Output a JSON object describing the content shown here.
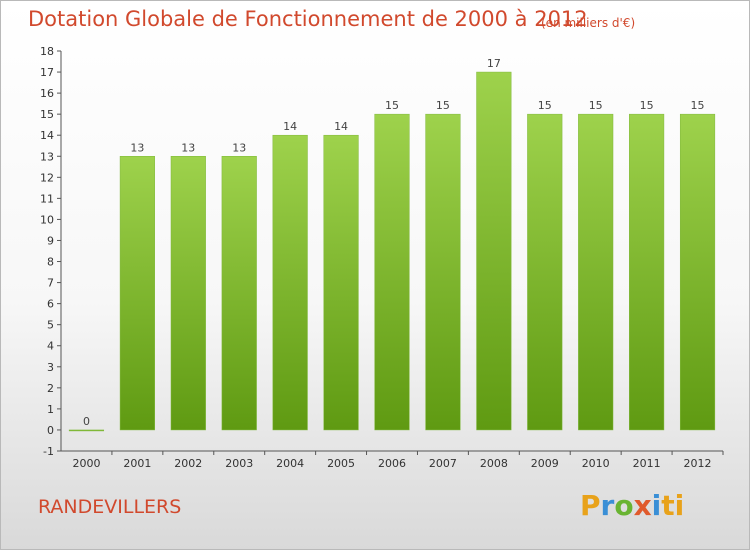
{
  "header": {
    "title": "Dotation Globale de Fonctionnement de 2000 à 2012",
    "unit_note": "(en milliers d'€)"
  },
  "footer": {
    "town": "RANDEVILLERS",
    "logo_letters": [
      "P",
      "r",
      "o",
      "x",
      "i",
      "ti"
    ]
  },
  "colors": {
    "bar_top": "#9ed24c",
    "bar_bottom": "#5f9a12",
    "title": "#d1492d"
  },
  "chart_data": {
    "type": "bar",
    "title": "Dotation Globale de Fonctionnement de 2000 à 2012",
    "subtitle": "(en milliers d'€)",
    "categories": [
      "2000",
      "2001",
      "2002",
      "2003",
      "2004",
      "2005",
      "2006",
      "2007",
      "2008",
      "2009",
      "2010",
      "2011",
      "2012"
    ],
    "values": [
      0,
      13,
      13,
      13,
      14,
      14,
      15,
      15,
      17,
      15,
      15,
      15,
      15
    ],
    "ylim": [
      -1,
      18
    ],
    "yticks": [
      -1,
      0,
      1,
      2,
      3,
      4,
      5,
      6,
      7,
      8,
      9,
      10,
      11,
      12,
      13,
      14,
      15,
      16,
      17,
      18
    ],
    "grid": false,
    "legend": "none"
  }
}
